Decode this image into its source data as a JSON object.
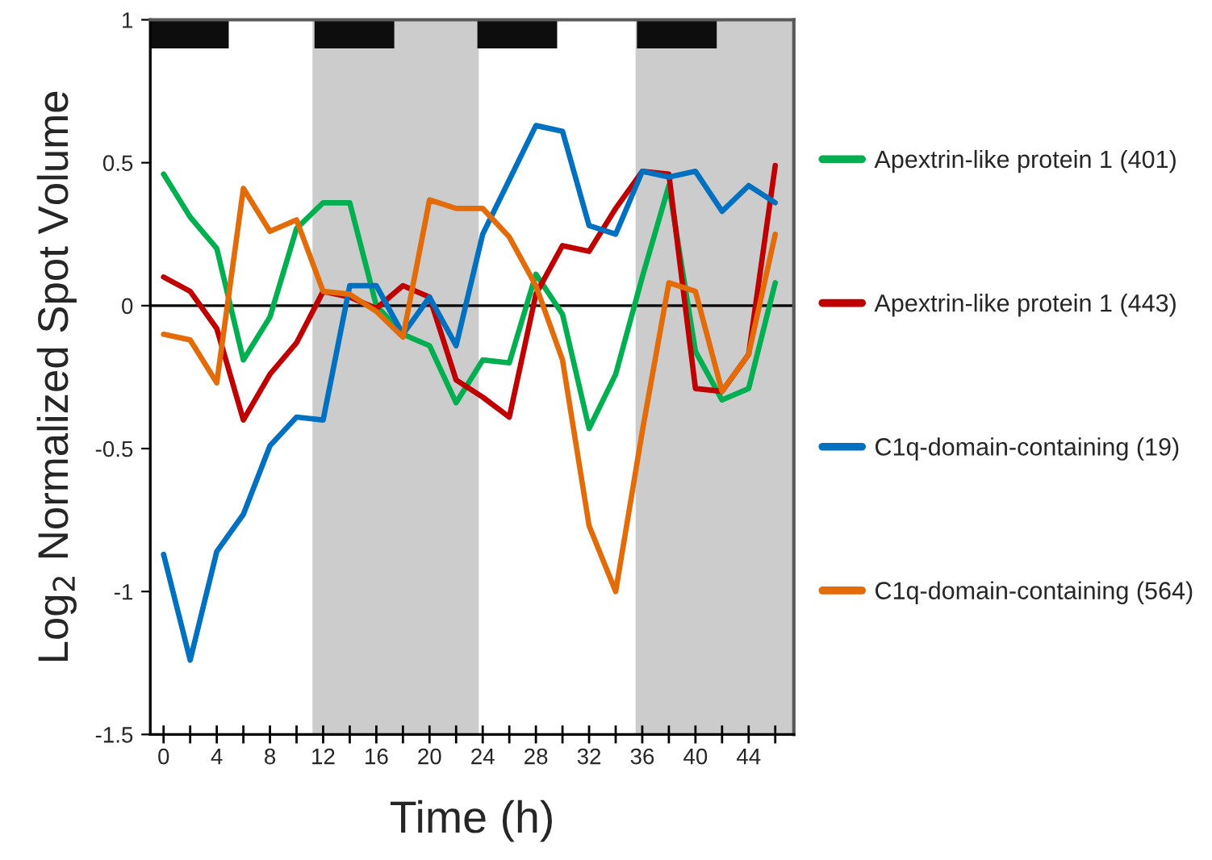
{
  "chart_data": {
    "type": "line",
    "xlabel": "Time (h)",
    "ylabel": "Log$_{2}$ Normalized Spot Volume",
    "x": [
      0,
      2,
      4,
      6,
      8,
      10,
      12,
      14,
      16,
      18,
      20,
      22,
      24,
      26,
      28,
      30,
      32,
      34,
      36,
      38,
      40,
      42,
      44,
      46
    ],
    "xlim": [
      -1,
      47.4
    ],
    "ylim": [
      -1.5,
      1
    ],
    "xticks": [
      0,
      {
        "value": 2,
        "label": null
      },
      4,
      {
        "value": 6,
        "label": null
      },
      8,
      {
        "value": 10,
        "label": null
      },
      12,
      {
        "value": 14,
        "label": null
      },
      16,
      {
        "value": 18,
        "label": null
      },
      20,
      {
        "value": 22,
        "label": null
      },
      24,
      {
        "value": 26,
        "label": null
      },
      28,
      {
        "value": 30,
        "label": null
      },
      32,
      {
        "value": 34,
        "label": null
      },
      36,
      {
        "value": 38,
        "label": null
      },
      40,
      {
        "value": 42,
        "label": null
      },
      44,
      {
        "value": 46,
        "label": null
      }
    ],
    "yticks": [
      1,
      0.5,
      0,
      -0.5,
      -1,
      -1.5
    ],
    "series": [
      {
        "name": "Apextrin-like protein 1 (401)",
        "color": "#00b050",
        "values": [
          0.46,
          0.31,
          0.2,
          -0.19,
          -0.04,
          0.27,
          0.36,
          0.36,
          0.0,
          -0.1,
          -0.14,
          -0.34,
          -0.19,
          -0.2,
          0.11,
          -0.03,
          -0.43,
          -0.24,
          0.1,
          0.42,
          -0.16,
          -0.33,
          -0.29,
          0.08
        ]
      },
      {
        "name": "Apextrin-like protein 1 (443)",
        "color": "#c00000",
        "values": [
          0.1,
          0.05,
          -0.08,
          -0.4,
          -0.24,
          -0.13,
          0.05,
          0.03,
          -0.01,
          0.07,
          0.03,
          -0.26,
          -0.32,
          -0.39,
          0.04,
          0.21,
          0.19,
          0.34,
          0.47,
          0.46,
          -0.29,
          -0.3,
          -0.17,
          0.49
        ]
      },
      {
        "name": "C1q-domain-containing (19)",
        "color": "#0070c0",
        "values": [
          -0.87,
          -1.24,
          -0.86,
          -0.73,
          -0.49,
          -0.39,
          -0.4,
          0.07,
          0.07,
          -0.1,
          0.03,
          -0.14,
          0.25,
          0.44,
          0.63,
          0.61,
          0.28,
          0.25,
          0.47,
          0.45,
          0.47,
          0.33,
          0.42,
          0.36
        ]
      },
      {
        "name": "C1q-domain-containing (564)",
        "color": "#e36c09",
        "values": [
          -0.1,
          -0.12,
          -0.27,
          0.41,
          0.26,
          0.3,
          0.05,
          0.04,
          -0.02,
          -0.11,
          0.37,
          0.34,
          0.34,
          0.24,
          0.07,
          -0.19,
          -0.77,
          -1.0,
          -0.44,
          0.08,
          0.05,
          -0.3,
          -0.17,
          0.25
        ]
      },
      {
        "type": "bar",
        "color": "#0d0d0d",
        "x": [
          1.9,
          14.35,
          26.6,
          38.6
        ],
        "base": [
          0.9,
          0.9,
          0.9,
          0.9
        ],
        "values": [
          0.1,
          0.1,
          0.1,
          0.1
        ]
      }
    ],
    "bands": [
      {
        "axis": "x",
        "from": 11.2,
        "to": 23.7,
        "color": "#cccccc"
      },
      {
        "axis": "x",
        "from": 35.5,
        "to": 47.4,
        "color": "#cccccc"
      }
    ],
    "ref_lines": [
      {
        "axis": "y",
        "value": 0,
        "color": "#000000"
      }
    ],
    "legend": "right",
    "grid": false,
    "marker": "none",
    "line_style": "solid"
  }
}
